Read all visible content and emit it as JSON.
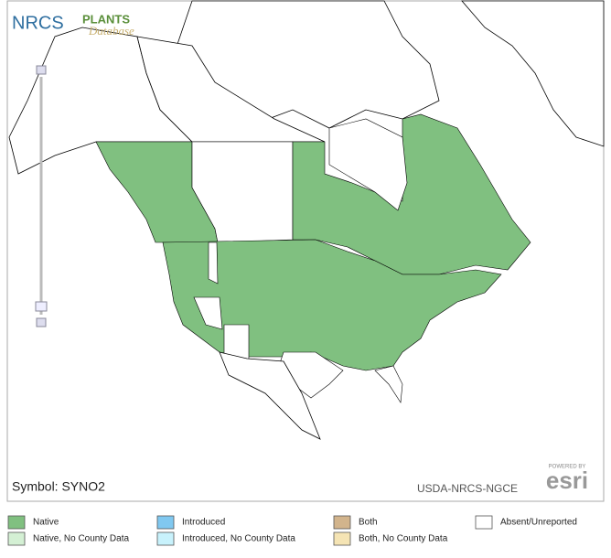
{
  "header": {
    "nrcs": "NRCS",
    "plants": "PLANTS",
    "database": "Database"
  },
  "map": {
    "symbol": "Symbol: SYNO2",
    "credit": "USDA-NRCS-NGCE",
    "powered_by": "POWERED BY",
    "esri": "esri"
  },
  "legend": {
    "items": [
      {
        "label": "Native",
        "color": "#80c080"
      },
      {
        "label": "Introduced",
        "color": "#80c8f0"
      },
      {
        "label": "Both",
        "color": "#d2b48c"
      },
      {
        "label": "Absent/Unreported",
        "color": "#ffffff"
      },
      {
        "label": "Native, No County Data",
        "color": "#d4f0d4"
      },
      {
        "label": "Introduced, No County Data",
        "color": "#c8f2fc"
      },
      {
        "label": "Both, No County Data",
        "color": "#f5e4b4"
      }
    ]
  }
}
